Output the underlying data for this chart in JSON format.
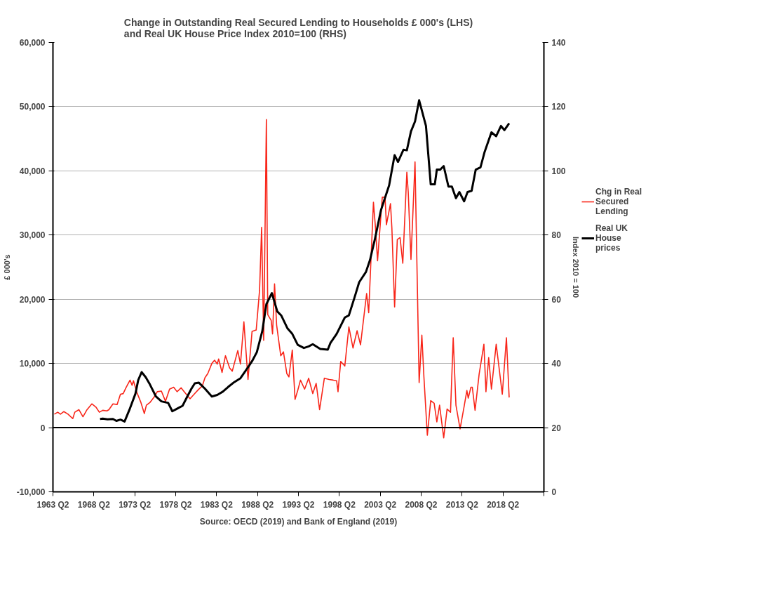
{
  "chart_data": {
    "type": "line",
    "title": "Change in Outstanding Real Secured Lending to Households £ 000's (LHS)\nand Real UK House Price  Index 2010=100 (RHS)",
    "ylabel": "£ 000's",
    "y2label": "Index 2010 = 100",
    "annotations": [
      "Source: OECD (2019) and Bank of England (2019)"
    ],
    "xlim": [
      "1963-04",
      "2023-04"
    ],
    "xticks": [
      {
        "value": "1963-04",
        "label": "1963 Q2"
      },
      {
        "value": "1968-04",
        "label": "1968 Q2"
      },
      {
        "value": "1973-04",
        "label": "1973 Q2"
      },
      {
        "value": "1978-04",
        "label": "1978 Q2"
      },
      {
        "value": "1983-04",
        "label": "1983 Q2"
      },
      {
        "value": "1988-04",
        "label": "1988 Q2"
      },
      {
        "value": "1993-04",
        "label": "1993 Q2"
      },
      {
        "value": "1998-04",
        "label": "1998 Q2"
      },
      {
        "value": "2003-04",
        "label": "2003 Q2"
      },
      {
        "value": "2008-04",
        "label": "2008 Q2"
      },
      {
        "value": "2013-04",
        "label": "2013 Q2"
      },
      {
        "value": "2018-04",
        "label": "2018 Q2"
      },
      {
        "value": "2023-04",
        "label": null
      }
    ],
    "ylim": [
      -10000,
      60000
    ],
    "yticks": [
      {
        "value": -10000,
        "label": "-10,000"
      },
      {
        "value": 0,
        "label": "0"
      },
      {
        "value": 10000,
        "label": "10,000"
      },
      {
        "value": 20000,
        "label": "20,000"
      },
      {
        "value": 30000,
        "label": "30,000"
      },
      {
        "value": 40000,
        "label": "40,000"
      },
      {
        "value": 50000,
        "label": "50,000"
      },
      {
        "value": 60000,
        "label": "60,000"
      }
    ],
    "y2lim": [
      0,
      140
    ],
    "y2ticks": [
      0,
      20,
      40,
      60,
      80,
      100,
      120,
      140
    ],
    "grid": "y",
    "legend": "right",
    "marker": "none",
    "ref_lines": [
      {
        "axis": "y",
        "value": 0,
        "label": null,
        "color": "#000000"
      }
    ],
    "series": [
      {
        "name": "Chg in Real Secured Lending",
        "color": "#f8261a",
        "x": [
          "1963-06",
          "1963-11",
          "1964-03",
          "1964-08",
          "1965-02",
          "1965-09",
          "1965-12",
          "1966-06",
          "1966-12",
          "1967-06",
          "1968-01",
          "1968-07",
          "1968-12",
          "1969-05",
          "1969-11",
          "1970-02",
          "1970-08",
          "1971-02",
          "1971-07",
          "1971-11",
          "1972-03",
          "1972-09",
          "1972-12",
          "1973-02",
          "1973-07",
          "1974-01",
          "1974-06",
          "1974-09",
          "1975-02",
          "1975-08",
          "1976-01",
          "1976-07",
          "1977-01",
          "1977-07",
          "1978-01",
          "1978-06",
          "1978-12",
          "1979-06",
          "1980-01",
          "1980-07",
          "1981-01",
          "1981-07",
          "1981-11",
          "1982-03",
          "1982-09",
          "1983-01",
          "1983-05",
          "1983-07",
          "1983-12",
          "1984-05",
          "1984-11",
          "1985-03",
          "1985-11",
          "1986-03",
          "1986-08",
          "1987-02",
          "1987-08",
          "1988-02",
          "1988-07",
          "1988-10",
          "1989-01",
          "1989-05",
          "1989-07",
          "1989-12",
          "1990-02",
          "1990-05",
          "1990-08",
          "1991-02",
          "1991-06",
          "1991-11",
          "1992-02",
          "1992-07",
          "1992-11",
          "1993-03",
          "1993-07",
          "1994-01",
          "1994-07",
          "1995-01",
          "1995-06",
          "1995-11",
          "1996-06",
          "1997-01",
          "1997-07",
          "1997-12",
          "1998-02",
          "1998-06",
          "1998-12",
          "1999-06",
          "1999-12",
          "2000-06",
          "2000-11",
          "2001-08",
          "2001-11",
          "2002-06",
          "2002-09",
          "2002-12",
          "2003-07",
          "2003-11",
          "2004-01",
          "2004-07",
          "2004-09",
          "2005-01",
          "2005-05",
          "2005-09",
          "2006-01",
          "2006-07",
          "2006-09",
          "2007-01",
          "2007-07",
          "2008-01",
          "2008-05",
          "2008-08",
          "2009-01",
          "2009-06",
          "2009-11",
          "2010-03",
          "2010-07",
          "2011-01",
          "2011-06",
          "2011-11",
          "2012-03",
          "2012-07",
          "2013-01",
          "2013-07",
          "2013-11",
          "2014-01",
          "2014-05",
          "2014-07",
          "2014-11",
          "2015-05",
          "2015-12",
          "2016-03",
          "2016-07",
          "2016-11",
          "2017-06",
          "2018-03",
          "2018-09",
          "2019-01"
        ],
        "values": [
          2100,
          2400,
          2100,
          2500,
          2100,
          1400,
          2400,
          2800,
          1700,
          2800,
          3700,
          3200,
          2400,
          2700,
          2600,
          2800,
          3700,
          3600,
          5200,
          5300,
          6200,
          7400,
          6600,
          7300,
          5500,
          3900,
          2200,
          3500,
          3900,
          4700,
          5600,
          5700,
          4100,
          6000,
          6300,
          5600,
          6200,
          5400,
          4500,
          5200,
          5900,
          6500,
          7800,
          8400,
          10000,
          10500,
          9900,
          10700,
          8600,
          11200,
          9300,
          8800,
          12000,
          9900,
          16500,
          7500,
          15000,
          15200,
          21400,
          31200,
          13600,
          48000,
          17600,
          16700,
          14600,
          22400,
          16000,
          11200,
          11800,
          8400,
          7900,
          12100,
          4400,
          5800,
          7400,
          6000,
          7700,
          5300,
          6900,
          2800,
          7700,
          7500,
          7400,
          7300,
          5600,
          10300,
          9600,
          15700,
          12400,
          15100,
          12900,
          20900,
          17900,
          35100,
          31100,
          26000,
          35900,
          35900,
          31600,
          34900,
          31100,
          18800,
          29300,
          29600,
          25600,
          39800,
          36700,
          26200,
          41400,
          7000,
          14400,
          7900,
          -1200,
          4200,
          3800,
          900,
          3500,
          -1600,
          2900,
          2400,
          14000,
          3500,
          -200,
          3300,
          5800,
          4600,
          6300,
          6300,
          2700,
          8300,
          13000,
          5600,
          10900,
          6000,
          13000,
          5200,
          14000,
          4700
        ]
      },
      {
        "name": "Real UK House prices",
        "color": "#000000",
        "axis": "y2",
        "x": [
          "1969-01",
          "1969-05",
          "1969-12",
          "1970-08",
          "1971-01",
          "1971-07",
          "1972-01",
          "1972-08",
          "1973-05",
          "1973-09",
          "1974-02",
          "1974-08",
          "1975-02",
          "1975-11",
          "1976-07",
          "1977-05",
          "1977-11",
          "1978-06",
          "1979-02",
          "1979-09",
          "1980-03",
          "1980-08",
          "1981-02",
          "1981-11",
          "1982-09",
          "1983-05",
          "1984-01",
          "1984-09",
          "1985-06",
          "1986-03",
          "1987-02",
          "1987-08",
          "1988-03",
          "1988-11",
          "1989-05",
          "1990-01",
          "1990-09",
          "1991-03",
          "1991-12",
          "1992-07",
          "1993-03",
          "1993-12",
          "1994-07",
          "1995-01",
          "1995-12",
          "1996-11",
          "1997-03",
          "1997-12",
          "1998-12",
          "1999-06",
          "2000-02",
          "2000-09",
          "2001-07",
          "2002-01",
          "2002-08",
          "2003-05",
          "2004-05",
          "2005-01",
          "2005-06",
          "2006-02",
          "2006-07",
          "2007-01",
          "2007-07",
          "2008-01",
          "2008-11",
          "2009-06",
          "2009-12",
          "2010-03",
          "2010-08",
          "2011-01",
          "2011-08",
          "2012-01",
          "2012-07",
          "2012-12",
          "2013-07",
          "2013-12",
          "2014-06",
          "2014-12",
          "2015-07",
          "2016-01",
          "2016-11",
          "2017-06",
          "2018-01",
          "2018-06",
          "2019-01"
        ],
        "values": [
          22.7,
          22.8,
          22.6,
          22.7,
          22.1,
          22.5,
          21.9,
          25.5,
          30.6,
          34.8,
          37.3,
          35.7,
          33.5,
          29.7,
          28.2,
          27.7,
          25.1,
          25.9,
          26.8,
          29.7,
          32.1,
          33.8,
          34.0,
          32.1,
          29.7,
          30.2,
          31.2,
          32.7,
          34.2,
          35.4,
          38.8,
          40.7,
          43.5,
          50.1,
          58.5,
          61.9,
          56.2,
          54.9,
          50.9,
          49.2,
          45.8,
          44.8,
          45.3,
          46.0,
          44.5,
          44.3,
          46.4,
          49.2,
          54.3,
          55.0,
          60.4,
          65.3,
          68.5,
          72.3,
          78.6,
          87.7,
          95.5,
          104.9,
          102.8,
          106.6,
          106.4,
          112.3,
          115.4,
          122.0,
          114.0,
          95.8,
          95.8,
          100.4,
          100.4,
          101.5,
          95.1,
          95.1,
          91.5,
          93.4,
          90.5,
          93.4,
          93.8,
          100.4,
          101.1,
          105.9,
          112.0,
          110.8,
          114.0,
          112.7,
          114.8
        ]
      }
    ]
  }
}
